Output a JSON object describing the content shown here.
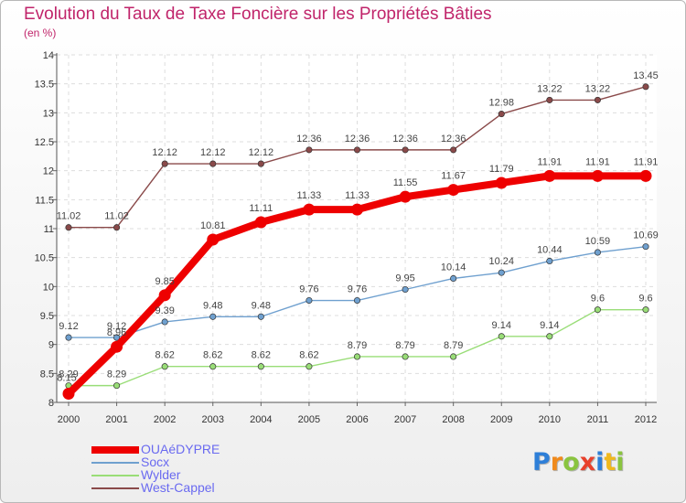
{
  "title": "Evolution du Taux de Taxe Foncière sur les Propriétés Bâties",
  "subtitle": "(en %)",
  "logo": {
    "letters": [
      "P",
      "r",
      "o",
      "x",
      "i",
      "t",
      "i"
    ],
    "colors": [
      "#2e7fd8",
      "#f08a1c",
      "#8ac43f",
      "#e8412c",
      "#2e7fd8",
      "#f0b81c",
      "#8ac43f"
    ]
  },
  "chart_data": {
    "type": "line",
    "title": "Evolution du Taux de Taxe Foncière sur les Propriétés Bâties",
    "ylabel": "(en %)",
    "xlabel": "",
    "x": [
      2000,
      2001,
      2002,
      2003,
      2004,
      2005,
      2006,
      2007,
      2008,
      2009,
      2010,
      2011,
      2012
    ],
    "ylim": [
      8,
      14
    ],
    "yticks": [
      8,
      8.5,
      9,
      9.5,
      10,
      10.5,
      11,
      11.5,
      12,
      12.5,
      13,
      13.5,
      14
    ],
    "legend_position": "bottom-left",
    "series": [
      {
        "name": "OUAéDYPRE",
        "color": "#ee0000",
        "emphasis": true,
        "values": [
          8.15,
          8.96,
          9.85,
          10.81,
          11.11,
          11.33,
          11.33,
          11.55,
          11.67,
          11.79,
          11.91,
          11.91,
          11.91
        ],
        "labels": [
          "8.15",
          "8.96",
          "9.85",
          "10.81",
          "11.11",
          "11.33",
          "11.33",
          "11.55",
          "11.67",
          "11.79",
          "11.91",
          "11.91",
          "11.91"
        ]
      },
      {
        "name": "Socx",
        "color": "#6fa0cf",
        "values": [
          9.12,
          9.12,
          9.39,
          9.48,
          9.48,
          9.76,
          9.76,
          9.95,
          10.14,
          10.24,
          10.44,
          10.59,
          10.69
        ],
        "labels": [
          "9.12",
          "9.12",
          "9.39",
          "9.48",
          "9.48",
          "9.76",
          "9.76",
          "9.95",
          "10.14",
          "10.24",
          "10.44",
          "10.59",
          "10.69"
        ]
      },
      {
        "name": "Wylder",
        "color": "#99dd77",
        "values": [
          8.29,
          8.29,
          8.62,
          8.62,
          8.62,
          8.62,
          8.79,
          8.79,
          8.79,
          9.14,
          9.14,
          9.6,
          9.6
        ],
        "labels": [
          "8.29",
          "8.29",
          "8.62",
          "8.62",
          "8.62",
          "8.62",
          "8.79",
          "8.79",
          "8.79",
          "9.14",
          "9.14",
          "9.6",
          "9.6"
        ]
      },
      {
        "name": "West-Cappel",
        "color": "#8a4a4a",
        "values": [
          11.02,
          11.02,
          12.12,
          12.12,
          12.12,
          12.36,
          12.36,
          12.36,
          12.36,
          12.98,
          13.22,
          13.22,
          13.45
        ],
        "labels": [
          "11.02",
          "11.02",
          "12.12",
          "12.12",
          "12.12",
          "12.36",
          "12.36",
          "12.36",
          "12.36",
          "12.98",
          "13.22",
          "13.22",
          "13.45"
        ]
      }
    ]
  }
}
